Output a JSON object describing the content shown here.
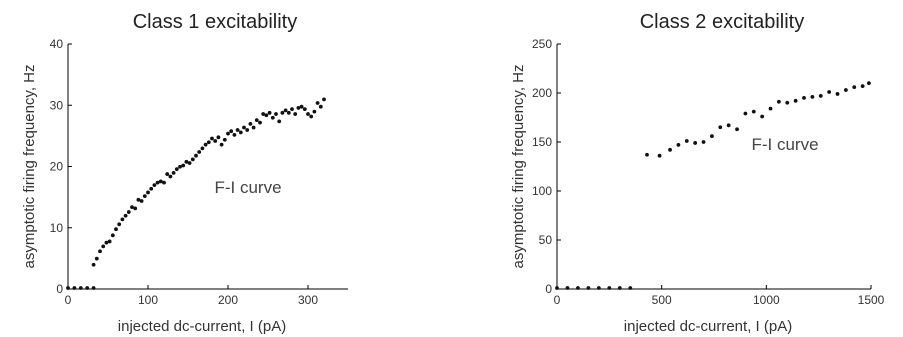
{
  "chart_data": [
    {
      "type": "scatter",
      "title": "Class 1 excitability",
      "xlabel": "injected dc-current, I (pA)",
      "ylabel": "asymptotic firing frequency, Hz",
      "xlim": [
        0,
        350
      ],
      "ylim": [
        0,
        40
      ],
      "xticks": [
        0,
        100,
        200,
        300
      ],
      "yticks": [
        0,
        10,
        20,
        30,
        40
      ],
      "annotation": "F-I curve",
      "grid": false,
      "x": [
        0,
        8,
        16,
        24,
        32,
        32,
        36,
        40,
        44,
        48,
        52,
        56,
        60,
        64,
        68,
        72,
        76,
        80,
        84,
        88,
        92,
        96,
        100,
        104,
        108,
        112,
        116,
        120,
        124,
        128,
        132,
        136,
        140,
        144,
        148,
        152,
        156,
        160,
        164,
        168,
        172,
        176,
        180,
        184,
        188,
        192,
        196,
        200,
        204,
        208,
        212,
        216,
        220,
        224,
        228,
        232,
        236,
        240,
        244,
        248,
        252,
        256,
        260,
        264,
        268,
        272,
        276,
        280,
        284,
        288,
        292,
        296,
        300,
        304,
        308,
        312,
        316,
        320
      ],
      "y": [
        0,
        0,
        0,
        0,
        0,
        3.8,
        4.8,
        6.0,
        6.8,
        7.4,
        7.6,
        8.6,
        9.6,
        10.4,
        11.2,
        11.8,
        12.4,
        13.2,
        13.0,
        14.4,
        14.2,
        15.0,
        15.6,
        16.2,
        16.8,
        17.2,
        17.4,
        17.2,
        18.6,
        18.2,
        18.8,
        19.4,
        19.8,
        20.0,
        20.6,
        20.4,
        21.0,
        21.6,
        22.2,
        22.8,
        23.4,
        23.8,
        24.4,
        24.0,
        24.6,
        23.4,
        24.2,
        25.2,
        25.6,
        25.0,
        25.8,
        25.4,
        26.2,
        25.8,
        26.8,
        26.2,
        27.4,
        27.0,
        28.4,
        28.2,
        28.6,
        27.8,
        28.4,
        27.2,
        28.6,
        29.0,
        28.6,
        29.2,
        28.4,
        29.4,
        29.6,
        29.2,
        28.4,
        28.0,
        28.8,
        30.2,
        29.6,
        30.8
      ]
    },
    {
      "type": "scatter",
      "title": "Class 2 excitability",
      "xlabel": "injected dc-current, I (pA)",
      "ylabel": "asymptotic firing frequency, Hz",
      "xlim": [
        0,
        1500
      ],
      "ylim": [
        0,
        250
      ],
      "xticks": [
        0,
        500,
        1000,
        1500
      ],
      "yticks": [
        0,
        50,
        100,
        150,
        200,
        250
      ],
      "annotation": "F-I curve",
      "grid": false,
      "x": [
        0,
        50,
        100,
        150,
        200,
        250,
        300,
        350,
        430,
        490,
        540,
        580,
        620,
        660,
        700,
        740,
        780,
        820,
        860,
        900,
        940,
        980,
        1020,
        1060,
        1100,
        1140,
        1180,
        1220,
        1260,
        1300,
        1340,
        1380,
        1420,
        1460,
        1490
      ],
      "y": [
        0,
        0,
        0,
        0,
        0,
        0,
        0,
        0,
        136,
        135,
        141,
        146,
        150,
        148,
        149,
        155,
        164,
        166,
        162,
        178,
        180,
        175,
        183,
        190,
        189,
        191,
        194,
        195,
        196,
        200,
        198,
        202,
        205,
        206,
        209
      ]
    }
  ]
}
